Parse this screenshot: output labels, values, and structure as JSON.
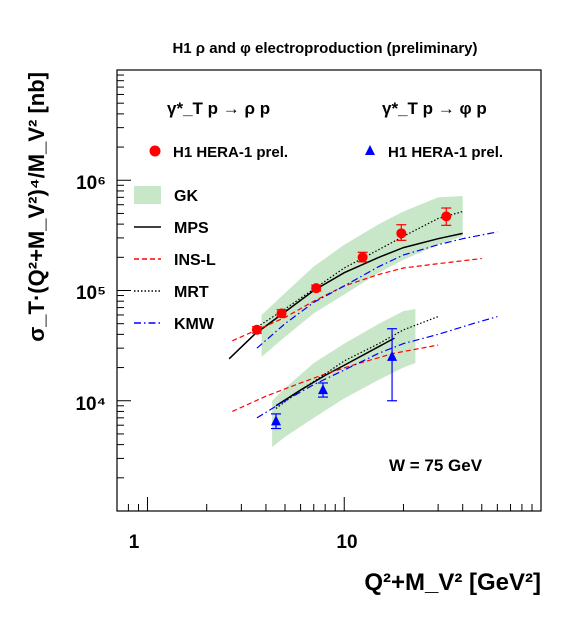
{
  "chart_data": {
    "type": "scatter",
    "title": "H1 ρ and φ electroproduction (preliminary)",
    "xlabel": "Q²+M_V² [GeV²]",
    "ylabel": "σ_T·(Q²+M_V²)⁴/M_V² [nb]",
    "xscale": "log",
    "yscale": "log",
    "xlim": [
      0.7,
      100
    ],
    "ylim": [
      1000,
      10000000
    ],
    "x_tick_labels": [
      "1",
      "10"
    ],
    "y_tick_labels": [
      "10⁴",
      "10⁵",
      "10⁶"
    ],
    "grid": false,
    "annotation": "W = 75 GeV",
    "rho_header": "γ*_T p → ρ p",
    "phi_header": "γ*_T p → φ p",
    "legend_placement": "left",
    "series": [
      {
        "name": "H1 HERA-1 prel.",
        "process": "rho",
        "marker": "circle",
        "color": "#ff0000",
        "points": [
          {
            "x": 3.6,
            "y": 44000,
            "ylo": 41000,
            "yhi": 47000
          },
          {
            "x": 4.8,
            "y": 62000,
            "ylo": 58000,
            "yhi": 67000
          },
          {
            "x": 7.2,
            "y": 105000,
            "ylo": 99000,
            "yhi": 112000
          },
          {
            "x": 12.4,
            "y": 200000,
            "ylo": 182000,
            "yhi": 222000
          },
          {
            "x": 19.5,
            "y": 330000,
            "ylo": 285000,
            "yhi": 395000
          },
          {
            "x": 33.0,
            "y": 470000,
            "ylo": 390000,
            "yhi": 560000
          }
        ]
      },
      {
        "name": "H1 HERA-1 prel.",
        "process": "phi",
        "marker": "triangle",
        "color": "#0000ff",
        "points": [
          {
            "x": 4.5,
            "y": 6500,
            "ylo": 5600,
            "yhi": 7600
          },
          {
            "x": 7.8,
            "y": 12500,
            "ylo": 10800,
            "yhi": 14500
          },
          {
            "x": 17.5,
            "y": 25000,
            "ylo": 10000,
            "yhi": 45000
          }
        ]
      }
    ],
    "legend": [
      {
        "label": "GK",
        "style": "band",
        "color": "#c8e6c8"
      },
      {
        "label": "MPS",
        "style": "solid",
        "color": "#000000"
      },
      {
        "label": "INS-L",
        "style": "dashed",
        "color": "#ff0000"
      },
      {
        "label": "MRT",
        "style": "dotted",
        "color": "#000000"
      },
      {
        "label": "KMW",
        "style": "dashdot",
        "color": "#0000ff"
      }
    ],
    "bands": [
      {
        "name": "GK",
        "process": "rho",
        "color": "#c8e6c8",
        "x": [
          3.8,
          5,
          7,
          10,
          15,
          20,
          30,
          40
        ],
        "lo": [
          25000,
          38000,
          62000,
          92000,
          145000,
          190000,
          260000,
          310000
        ],
        "hi": [
          60000,
          95000,
          165000,
          260000,
          400000,
          520000,
          700000,
          720000
        ]
      },
      {
        "name": "GK",
        "process": "phi",
        "color": "#c8e6c8",
        "x": [
          4.3,
          5,
          7,
          10,
          15,
          20,
          23
        ],
        "lo": [
          3800,
          4700,
          7000,
          10500,
          15500,
          20000,
          22000
        ],
        "hi": [
          10000,
          13000,
          22000,
          33000,
          50000,
          65000,
          68000
        ]
      }
    ],
    "curves": [
      {
        "name": "MPS",
        "process": "rho",
        "x": [
          2.6,
          3.5,
          5,
          7,
          10,
          15,
          20,
          30,
          40
        ],
        "y": [
          24000,
          40000,
          64000,
          100000,
          145000,
          200000,
          245000,
          295000,
          330000
        ]
      },
      {
        "name": "MPS",
        "process": "phi",
        "x": [
          4.5,
          6,
          8,
          10,
          15,
          18
        ],
        "y": [
          9000,
          12500,
          17000,
          21000,
          31000,
          37000
        ]
      },
      {
        "name": "INS-L",
        "process": "rho",
        "x": [
          2.7,
          3.5,
          5,
          7,
          10,
          15,
          20,
          30,
          50
        ],
        "y": [
          35000,
          43000,
          57000,
          80000,
          110000,
          140000,
          160000,
          175000,
          195000
        ]
      },
      {
        "name": "INS-L",
        "process": "phi",
        "x": [
          2.7,
          4,
          6,
          8,
          12,
          18,
          30
        ],
        "y": [
          8000,
          11000,
          14500,
          17500,
          22000,
          27000,
          32000
        ]
      },
      {
        "name": "MRT",
        "process": "rho",
        "x": [
          3.5,
          5,
          7,
          10,
          15,
          20,
          30,
          40
        ],
        "y": [
          45000,
          68000,
          103000,
          160000,
          235000,
          310000,
          450000,
          520000
        ]
      },
      {
        "name": "MRT",
        "process": "phi",
        "x": [
          4.5,
          6,
          8,
          10,
          15,
          20,
          30
        ],
        "y": [
          8500,
          12500,
          17500,
          23000,
          33000,
          44000,
          58000
        ]
      },
      {
        "name": "KMW",
        "process": "rho",
        "x": [
          3.6,
          5,
          7,
          10,
          15,
          20,
          30,
          40,
          60
        ],
        "y": [
          30000,
          50000,
          78000,
          110000,
          165000,
          210000,
          260000,
          295000,
          340000
        ]
      },
      {
        "name": "KMW",
        "process": "phi",
        "x": [
          3.6,
          5,
          7,
          10,
          15,
          20,
          30,
          45,
          60
        ],
        "y": [
          7000,
          10000,
          14000,
          19000,
          27000,
          33000,
          40000,
          50000,
          58000
        ]
      }
    ]
  }
}
